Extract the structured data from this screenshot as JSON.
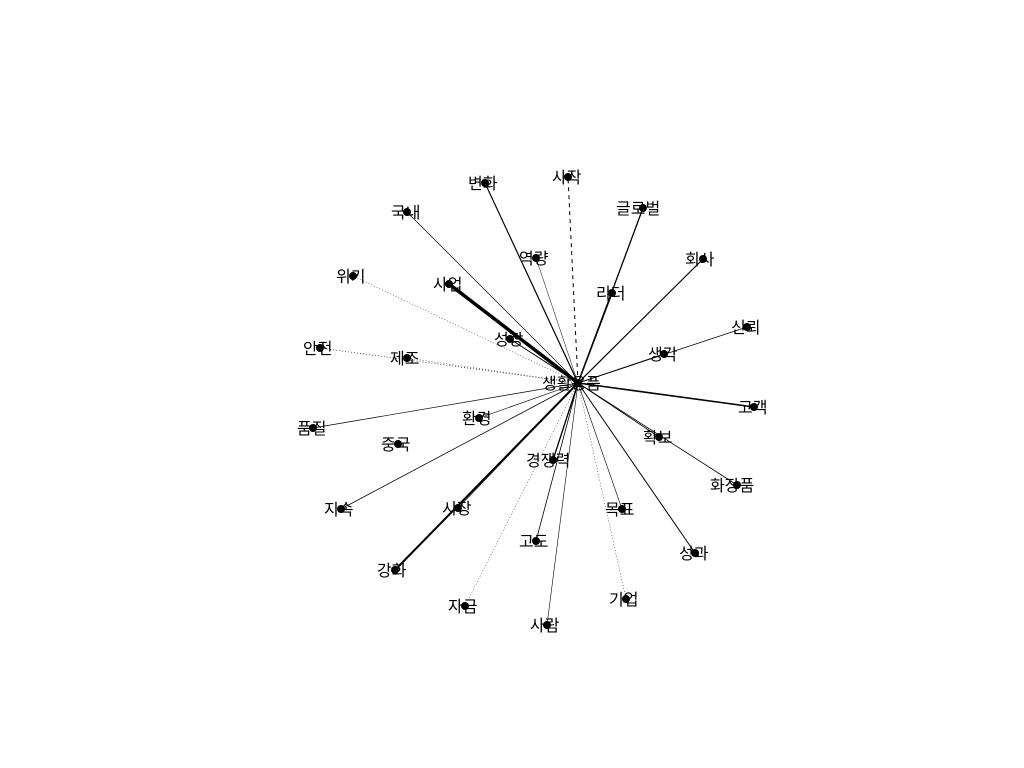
{
  "network": {
    "center": {
      "label": "생활용품"
    },
    "nodes": [
      {
        "id": "sijak",
        "label": "사작",
        "weight": 1,
        "dashed": true
      },
      {
        "id": "byeonhwa",
        "label": "변화",
        "weight": 1.2
      },
      {
        "id": "global",
        "label": "글로벌",
        "weight": 1.3
      },
      {
        "id": "gungnae",
        "label": "국내",
        "weight": 0.7
      },
      {
        "id": "yeokryang",
        "label": "역량",
        "weight": 0.5
      },
      {
        "id": "hoesa",
        "label": "회사",
        "weight": 1.2
      },
      {
        "id": "wigi",
        "label": "위기",
        "weight": 0.5,
        "dotted": true
      },
      {
        "id": "saeop",
        "label": "사업",
        "weight": 3.5
      },
      {
        "id": "rideo",
        "label": "리더",
        "weight": 1.5
      },
      {
        "id": "sinroe",
        "label": "신뢰",
        "weight": 0.8
      },
      {
        "id": "seongjang",
        "label": "성장",
        "weight": 1
      },
      {
        "id": "anjeon",
        "label": "안전",
        "weight": 0.6,
        "dotted": true
      },
      {
        "id": "jejo",
        "label": "제조",
        "weight": 0.5,
        "dotted": true
      },
      {
        "id": "saenggak",
        "label": "생각",
        "weight": 0.8
      },
      {
        "id": "gogaek",
        "label": "고객",
        "weight": 1.6
      },
      {
        "id": "pumjil",
        "label": "품질",
        "weight": 0.7
      },
      {
        "id": "hwangyeong",
        "label": "환경",
        "weight": 0.6
      },
      {
        "id": "hwakbo",
        "label": "확보",
        "weight": 0.8
      },
      {
        "id": "jungguk",
        "label": "중국",
        "weight": 0
      },
      {
        "id": "gyeongjaengryeok",
        "label": "경쟁력",
        "weight": 1.3
      },
      {
        "id": "hwajangpum",
        "label": "화장품",
        "weight": 0.8
      },
      {
        "id": "jisok",
        "label": "지속",
        "weight": 0.8
      },
      {
        "id": "sijang",
        "label": "시장",
        "weight": 0.7
      },
      {
        "id": "mokpyo",
        "label": "목표",
        "weight": 0.6
      },
      {
        "id": "seonggwa",
        "label": "성과",
        "weight": 1
      },
      {
        "id": "godo",
        "label": "고도",
        "weight": 0.8
      },
      {
        "id": "ganghwa",
        "label": "강화",
        "weight": 2
      },
      {
        "id": "jageum",
        "label": "자금",
        "weight": 0.5,
        "dotted": true
      },
      {
        "id": "gieop",
        "label": "기업",
        "weight": 0.5,
        "dotted": true
      },
      {
        "id": "saram",
        "label": "사람",
        "weight": 0.6
      }
    ]
  }
}
